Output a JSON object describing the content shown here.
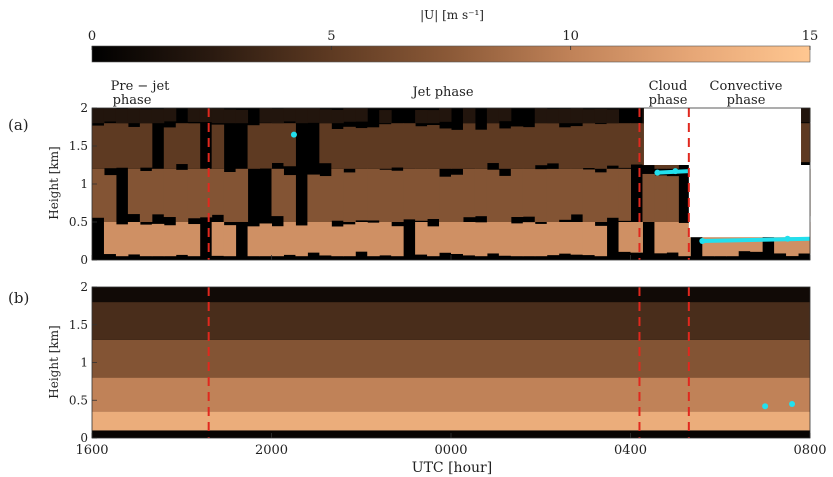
{
  "colorbar": {
    "label": "|U| [m s⁻¹]",
    "ticks": [
      "0",
      "5",
      "10",
      "15"
    ],
    "tick_values": [
      0,
      5,
      10,
      15
    ],
    "range": [
      0,
      15
    ],
    "colormap": [
      "#000000",
      "#2a1a10",
      "#5e3a22",
      "#8c5a38",
      "#c08258",
      "#e6a676",
      "#ffc791"
    ]
  },
  "chart_data": [
    {
      "type": "heatmap",
      "panel_label": "(a)",
      "ylabel": "Height  [km]",
      "ylim": [
        0,
        2
      ],
      "yticks": [
        "0",
        "0.5",
        "1",
        "1.5",
        "2"
      ],
      "ytick_values": [
        0,
        0.5,
        1,
        1.5,
        2
      ],
      "x_start_hour": 16,
      "x_end_hour": 32,
      "phase_lines_hour": [
        18.6,
        28.2,
        29.3
      ],
      "phase_labels": [
        "Pre − jet phase",
        "Jet phase",
        "Cloud phase",
        "Convective phase"
      ],
      "z_units": "m s⁻¹",
      "bands": [
        {
          "height_km": [
            0.05,
            0.5
          ],
          "speed": 11
        },
        {
          "height_km": [
            0.5,
            1.2
          ],
          "speed": 7
        },
        {
          "height_km": [
            1.2,
            1.8
          ],
          "speed": 5
        },
        {
          "height_km": [
            1.8,
            2.0
          ],
          "speed": 2
        }
      ],
      "cloud_base_km": [
        {
          "hour": 20.5,
          "height": 1.65
        },
        {
          "hour": 28.6,
          "height": 1.15
        },
        {
          "hour": 29.0,
          "height": 1.17
        },
        {
          "hour": 29.6,
          "height": 0.25
        },
        {
          "hour": 31.5,
          "height": 0.28
        }
      ]
    },
    {
      "type": "heatmap",
      "panel_label": "(b)",
      "ylabel": "Height  [km]",
      "xlabel": "UTC [hour]",
      "ylim": [
        0,
        2
      ],
      "yticks": [
        "0",
        "0.5",
        "1",
        "1.5",
        "2"
      ],
      "ytick_values": [
        0,
        0.5,
        1,
        1.5,
        2
      ],
      "xticks": [
        "1600",
        "2000",
        "0000",
        "0400",
        "0800"
      ],
      "xtick_hours": [
        16,
        20,
        24,
        28,
        32
      ],
      "x_start_hour": 16,
      "x_end_hour": 32,
      "phase_lines_hour": [
        18.6,
        28.2,
        29.3
      ],
      "z_units": "m s⁻¹",
      "bands": [
        {
          "height_km": [
            0.1,
            0.35
          ],
          "speed": 13
        },
        {
          "height_km": [
            0.35,
            0.8
          ],
          "speed": 10
        },
        {
          "height_km": [
            0.8,
            1.3
          ],
          "speed": 7
        },
        {
          "height_km": [
            1.3,
            1.8
          ],
          "speed": 4
        },
        {
          "height_km": [
            1.8,
            2.0
          ],
          "speed": 1
        }
      ],
      "cloud_base_km": [
        {
          "hour": 31.0,
          "height": 0.42
        },
        {
          "hour": 31.6,
          "height": 0.45
        }
      ]
    }
  ]
}
